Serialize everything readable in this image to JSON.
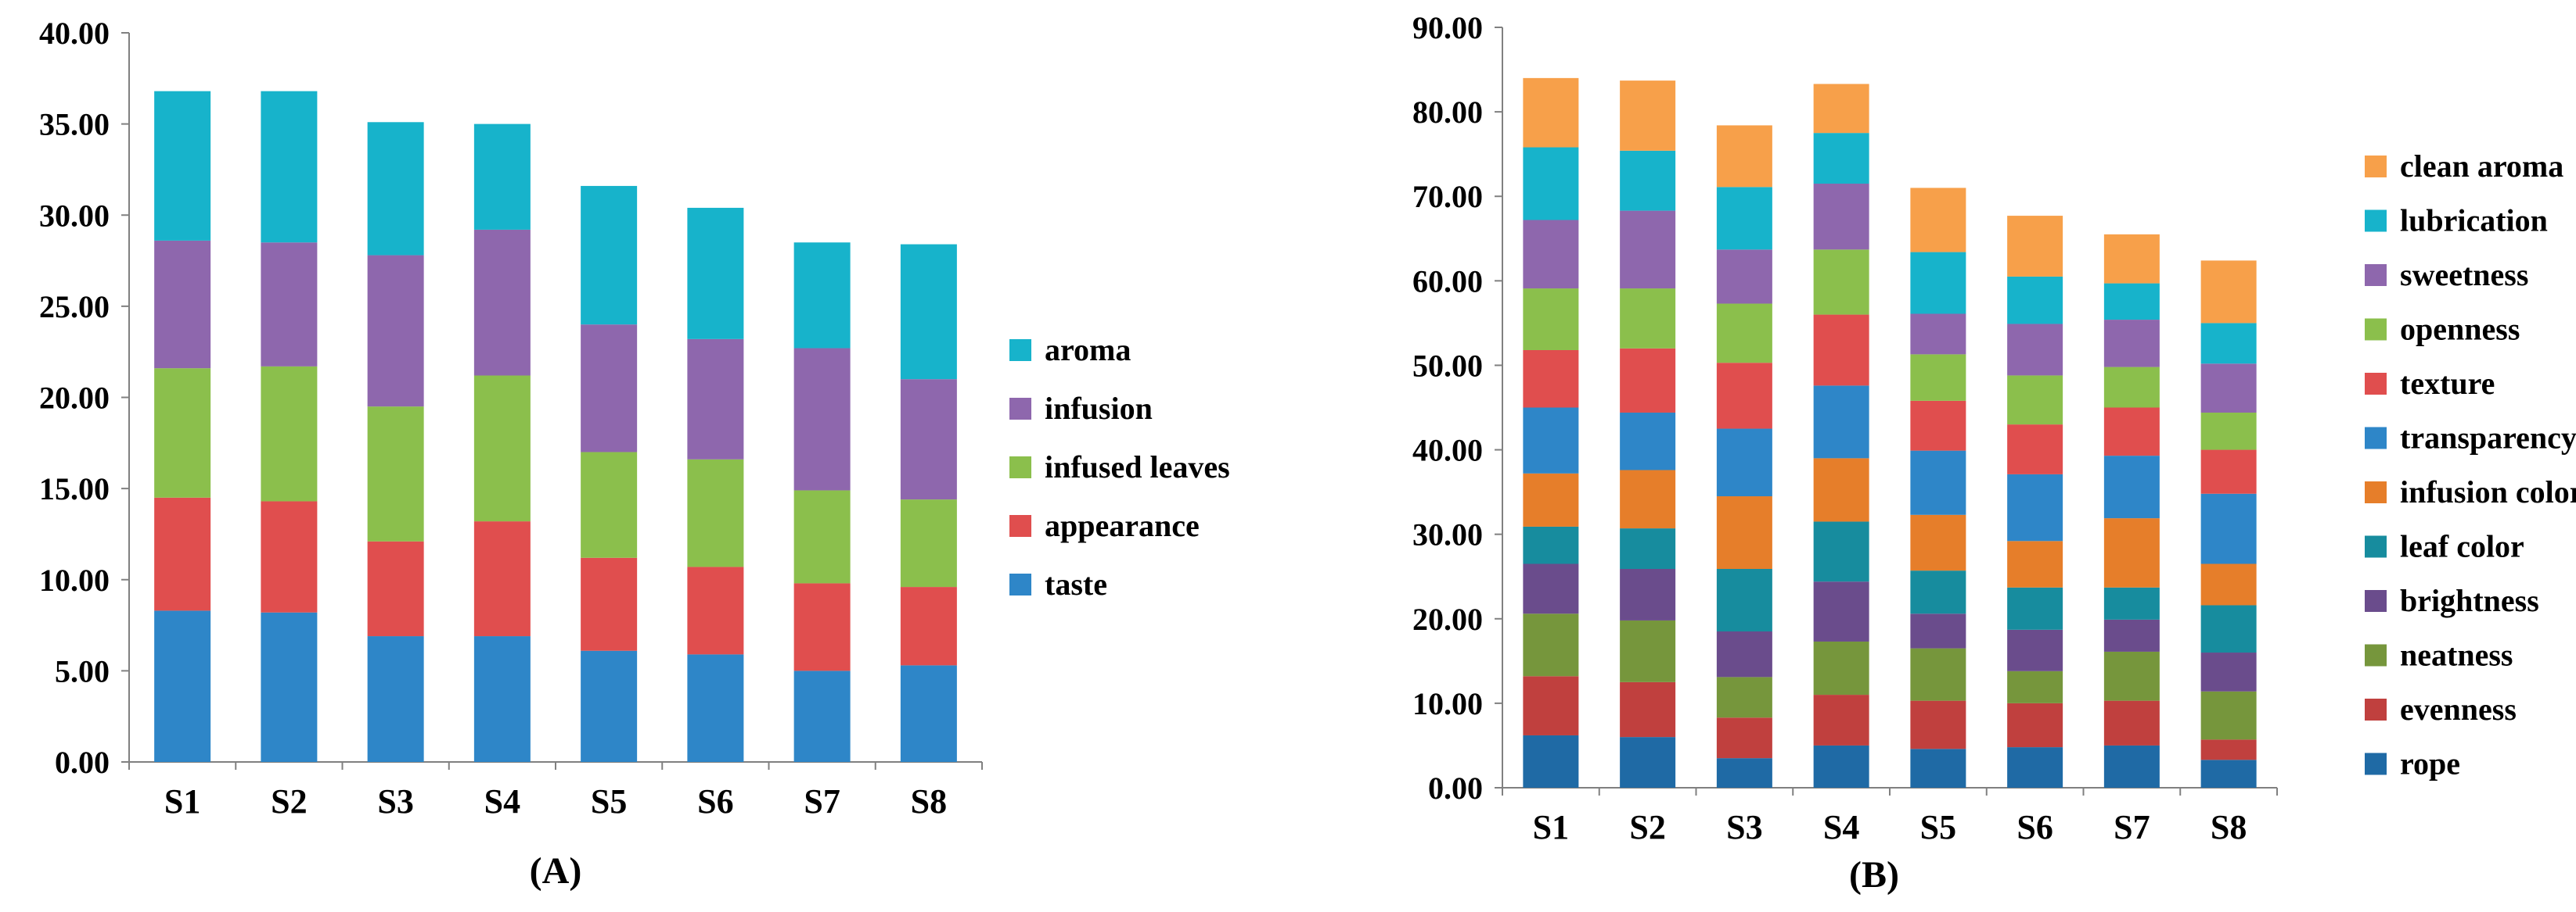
{
  "chart_data": [
    {
      "type": "bar",
      "stacked": true,
      "caption": "(A)",
      "categories": [
        "S1",
        "S2",
        "S3",
        "S4",
        "S5",
        "S6",
        "S7",
        "S8"
      ],
      "ylim": [
        0,
        40
      ],
      "yticks": [
        0,
        5,
        10,
        15,
        20,
        25,
        30,
        35,
        40
      ],
      "ytick_labels": [
        "0.00",
        "5.00",
        "10.00",
        "15.00",
        "20.00",
        "25.00",
        "30.00",
        "35.00",
        "40.00"
      ],
      "legend_position": "right",
      "series": [
        {
          "name": "taste",
          "color": "#2E86C8",
          "values": [
            8.3,
            8.2,
            6.9,
            6.9,
            6.1,
            5.9,
            5.0,
            5.3
          ]
        },
        {
          "name": "appearance",
          "color": "#E04E4E",
          "values": [
            6.2,
            6.1,
            5.2,
            6.3,
            5.1,
            4.8,
            4.8,
            4.3
          ]
        },
        {
          "name": "infused leaves",
          "color": "#8BBF4C",
          "values": [
            7.1,
            7.4,
            7.4,
            8.0,
            5.8,
            5.9,
            5.1,
            4.8
          ]
        },
        {
          "name": "infusion",
          "color": "#8E67AD",
          "values": [
            7.0,
            6.8,
            8.3,
            8.0,
            7.0,
            6.6,
            7.8,
            6.6
          ]
        },
        {
          "name": "aroma",
          "color": "#17B3CB",
          "values": [
            8.2,
            8.3,
            7.3,
            5.8,
            7.6,
            7.2,
            5.8,
            7.4
          ]
        }
      ]
    },
    {
      "type": "bar",
      "stacked": true,
      "caption": "(B)",
      "categories": [
        "S1",
        "S2",
        "S3",
        "S4",
        "S5",
        "S6",
        "S7",
        "S8"
      ],
      "ylim": [
        0,
        90
      ],
      "yticks": [
        0,
        10,
        20,
        30,
        40,
        50,
        60,
        70,
        80,
        90
      ],
      "ytick_labels": [
        "0.00",
        "10.00",
        "20.00",
        "30.00",
        "40.00",
        "50.00",
        "60.00",
        "70.00",
        "80.00",
        "90.00"
      ],
      "legend_position": "right",
      "series": [
        {
          "name": "rope",
          "color": "#1F6AA5",
          "values": [
            6.2,
            6.0,
            3.5,
            5.0,
            4.6,
            4.8,
            5.0,
            3.3
          ]
        },
        {
          "name": "evenness",
          "color": "#C0403E",
          "values": [
            7.0,
            6.5,
            4.8,
            6.0,
            5.7,
            5.2,
            5.3,
            2.4
          ]
        },
        {
          "name": "neatness",
          "color": "#76963C",
          "values": [
            7.4,
            7.3,
            4.8,
            6.3,
            6.2,
            3.8,
            5.8,
            5.7
          ]
        },
        {
          "name": "brightness",
          "color": "#6A4C8C",
          "values": [
            5.9,
            6.1,
            5.4,
            7.1,
            4.1,
            4.9,
            3.8,
            4.6
          ]
        },
        {
          "name": "leaf color",
          "color": "#178C9E",
          "values": [
            4.4,
            4.8,
            7.4,
            7.1,
            5.1,
            5.0,
            3.8,
            5.6
          ]
        },
        {
          "name": "infusion color",
          "color": "#E67E2A",
          "values": [
            6.3,
            6.9,
            8.6,
            7.5,
            6.6,
            5.5,
            8.2,
            4.9
          ]
        },
        {
          "name": "transparency",
          "color": "#2E86C8",
          "values": [
            7.8,
            6.8,
            8.0,
            8.6,
            7.6,
            7.9,
            7.4,
            8.3
          ]
        },
        {
          "name": "texture",
          "color": "#E04E4E",
          "values": [
            6.8,
            7.6,
            7.8,
            8.4,
            5.9,
            5.9,
            5.7,
            5.2
          ]
        },
        {
          "name": "openness",
          "color": "#8BBF4C",
          "values": [
            7.3,
            7.1,
            7.0,
            7.7,
            5.5,
            5.8,
            4.8,
            4.4
          ]
        },
        {
          "name": "sweetness",
          "color": "#8E67AD",
          "values": [
            8.1,
            9.2,
            6.4,
            7.8,
            4.8,
            6.1,
            5.6,
            5.8
          ]
        },
        {
          "name": "lubrication",
          "color": "#17B3CB",
          "values": [
            8.6,
            7.1,
            7.4,
            6.0,
            7.3,
            5.6,
            4.3,
            4.8
          ]
        },
        {
          "name": "clean aroma",
          "color": "#F7A04A",
          "values": [
            8.2,
            8.3,
            7.3,
            5.8,
            7.6,
            7.2,
            5.8,
            7.4
          ]
        }
      ]
    }
  ]
}
